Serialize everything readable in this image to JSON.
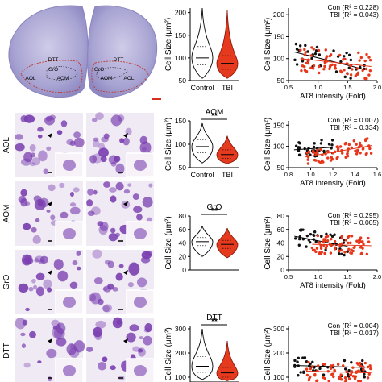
{
  "histology": {
    "top_labels": [
      "DTT",
      "GrO",
      "AOM",
      "AOL"
    ],
    "row_labels": [
      "AOL",
      "AOM",
      "GrO",
      "DTT"
    ]
  },
  "chart_data": [
    {
      "type": "violin",
      "title": "",
      "ylabel": "Cell Size (μm²)",
      "categories": [
        "Control",
        "TBI"
      ],
      "yticks": [
        50,
        100,
        150,
        200
      ],
      "ylim": [
        50,
        210
      ],
      "significance": "",
      "series": [
        {
          "values": [
            {
              "min": 55,
              "q1": 85,
              "median": 100,
              "q3": 125,
              "max": 210
            },
            {
              "min": 55,
              "q1": 75,
              "median": 88,
              "q3": 105,
              "max": 205
            }
          ]
        }
      ]
    },
    {
      "type": "violin",
      "title": "AOM",
      "ylabel": "Cell Size (μm²)",
      "categories": [
        "Control",
        "TBI"
      ],
      "yticks": [
        50,
        100,
        150
      ],
      "ylim": [
        50,
        150
      ],
      "significance": "**",
      "series": [
        {
          "values": [
            {
              "min": 60,
              "q1": 82,
              "median": 95,
              "q3": 110,
              "max": 145
            },
            {
              "min": 58,
              "q1": 70,
              "median": 78,
              "q3": 88,
              "max": 118
            }
          ]
        }
      ]
    },
    {
      "type": "violin",
      "title": "GrO",
      "ylabel": "Cell Size (μm²)",
      "categories": [],
      "yticks": [
        0,
        20,
        40,
        60,
        80
      ],
      "ylim": [
        0,
        80
      ],
      "significance": "**",
      "series": [
        {
          "values": [
            {
              "min": 20,
              "q1": 36,
              "median": 42,
              "q3": 48,
              "max": 65
            },
            {
              "min": 18,
              "q1": 32,
              "median": 38,
              "q3": 44,
              "max": 62
            }
          ]
        }
      ]
    },
    {
      "type": "violin",
      "title": "DTT",
      "ylabel": "Cell Size (μm²)",
      "categories": [],
      "yticks": [
        100,
        200,
        300
      ],
      "ylim": [
        80,
        310
      ],
      "significance": "**",
      "series": [
        {
          "values": [
            {
              "min": 90,
              "q1": 120,
              "median": 145,
              "q3": 185,
              "max": 300
            },
            {
              "min": 85,
              "q1": 100,
              "median": 118,
              "q3": 140,
              "max": 250
            }
          ]
        }
      ]
    },
    {
      "type": "scatter",
      "xlabel": "AT8 intensity (Fold)",
      "ylabel": "Cell Size (μm²)",
      "xticks": [
        "0.5",
        "1.0",
        "1.5",
        "2.0"
      ],
      "yticks": [
        50,
        100,
        150,
        200
      ],
      "xlim": [
        0.5,
        2.0
      ],
      "ylim": [
        50,
        215
      ],
      "legend": [
        "Con (R² = 0.228)",
        "TBI (R² = 0.043)"
      ],
      "fit": [
        {
          "x": [
            0.6,
            1.8
          ],
          "y": [
            115,
            75
          ]
        },
        {
          "x": [
            0.7,
            1.9
          ],
          "y": [
            100,
            82
          ]
        }
      ]
    },
    {
      "type": "scatter",
      "xlabel": "AT8 intensity (Fold)",
      "ylabel": "Cell Size (μm²)",
      "xticks": [
        "0.8",
        "1.0",
        "1.2",
        "1.4",
        "1.6"
      ],
      "yticks": [
        50,
        100,
        150
      ],
      "xlim": [
        0.8,
        1.6
      ],
      "ylim": [
        50,
        160
      ],
      "legend": [
        "Con (R² = 0.007)",
        "TBI (R² = 0.334)"
      ],
      "fit": [
        {
          "x": [
            0.85,
            1.2
          ],
          "y": [
            92,
            98
          ]
        },
        {
          "x": [
            0.95,
            1.55
          ],
          "y": [
            75,
            102
          ]
        }
      ]
    },
    {
      "type": "scatter",
      "xlabel": "AT8 intensity (Fold)",
      "ylabel": "Cell Size (μm²)",
      "xticks": [
        "0.5",
        "1.0",
        "1.5",
        "2.0"
      ],
      "yticks": [
        0,
        20,
        40,
        60,
        80
      ],
      "xlim": [
        0.5,
        2.0
      ],
      "ylim": [
        0,
        80
      ],
      "legend": [
        "Con (R² = 0.295)",
        "TBI (R² = 0.005)"
      ],
      "fit": [
        {
          "x": [
            0.6,
            1.5
          ],
          "y": [
            50,
            35
          ]
        },
        {
          "x": [
            0.9,
            1.9
          ],
          "y": [
            38,
            36
          ]
        }
      ]
    },
    {
      "type": "scatter",
      "xlabel": "",
      "ylabel": "Cell Size (μm²)",
      "xticks": [],
      "yticks": [
        100,
        200,
        300
      ],
      "xlim": [
        0.5,
        2.0
      ],
      "ylim": [
        80,
        310
      ],
      "legend": [
        "Con (R² = 0.004)",
        "TBI (R² = 0.017)"
      ],
      "fit": [
        {
          "x": [
            0.6,
            1.8
          ],
          "y": [
            148,
            140
          ]
        },
        {
          "x": [
            0.8,
            1.9
          ],
          "y": [
            125,
            118
          ]
        }
      ]
    }
  ],
  "colors": {
    "control": "#111111",
    "tbi": "#e8361a",
    "tbi_fill": "#e53a1e",
    "stain": "#7a3fb0",
    "tissue": "#b7b4dc"
  }
}
